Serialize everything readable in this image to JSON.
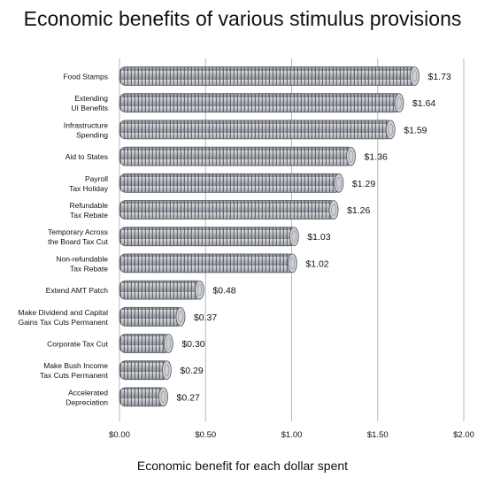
{
  "chart_data": {
    "type": "bar",
    "title": "Economic benefits of various stimulus provisions",
    "xlabel": "Economic benefit for each dollar spent",
    "ylabel": "",
    "orientation": "horizontal",
    "xlim": [
      0,
      2.0
    ],
    "x_ticks": [
      "$0.00",
      "$0.50",
      "$1.00",
      "$1.50",
      "$2.00"
    ],
    "x_tick_values": [
      0,
      0.5,
      1.0,
      1.5,
      2.0
    ],
    "grid": "vertical",
    "bar_style": "stacked-coins",
    "bar_color": "#9a9fa6",
    "categories": [
      [
        "Food Stamps"
      ],
      [
        "Extending",
        "UI Benefits"
      ],
      [
        "Infrastructure",
        "Spending"
      ],
      [
        "Aid to States"
      ],
      [
        "Payroll",
        "Tax Holiday"
      ],
      [
        "Refundable",
        "Tax Rebate"
      ],
      [
        "Temporary Across",
        "the Board Tax Cut"
      ],
      [
        "Non-refundable",
        "Tax Rebate"
      ],
      [
        "Extend AMT Patch"
      ],
      [
        "Make Dividend and Capital",
        "Gains Tax Cuts Permanent"
      ],
      [
        "Corporate Tax Cut"
      ],
      [
        "Make Bush Income",
        "Tax Cuts Permanent"
      ],
      [
        "Accelerated",
        "Depreciation"
      ]
    ],
    "values": [
      1.73,
      1.64,
      1.59,
      1.36,
      1.29,
      1.26,
      1.03,
      1.02,
      0.48,
      0.37,
      0.3,
      0.29,
      0.27
    ],
    "value_labels": [
      "$1.73",
      "$1.64",
      "$1.59",
      "$1.36",
      "$1.29",
      "$1.26",
      "$1.03",
      "$1.02",
      "$0.48",
      "$0.37",
      "$0.30",
      "$0.29",
      "$0.27"
    ]
  }
}
